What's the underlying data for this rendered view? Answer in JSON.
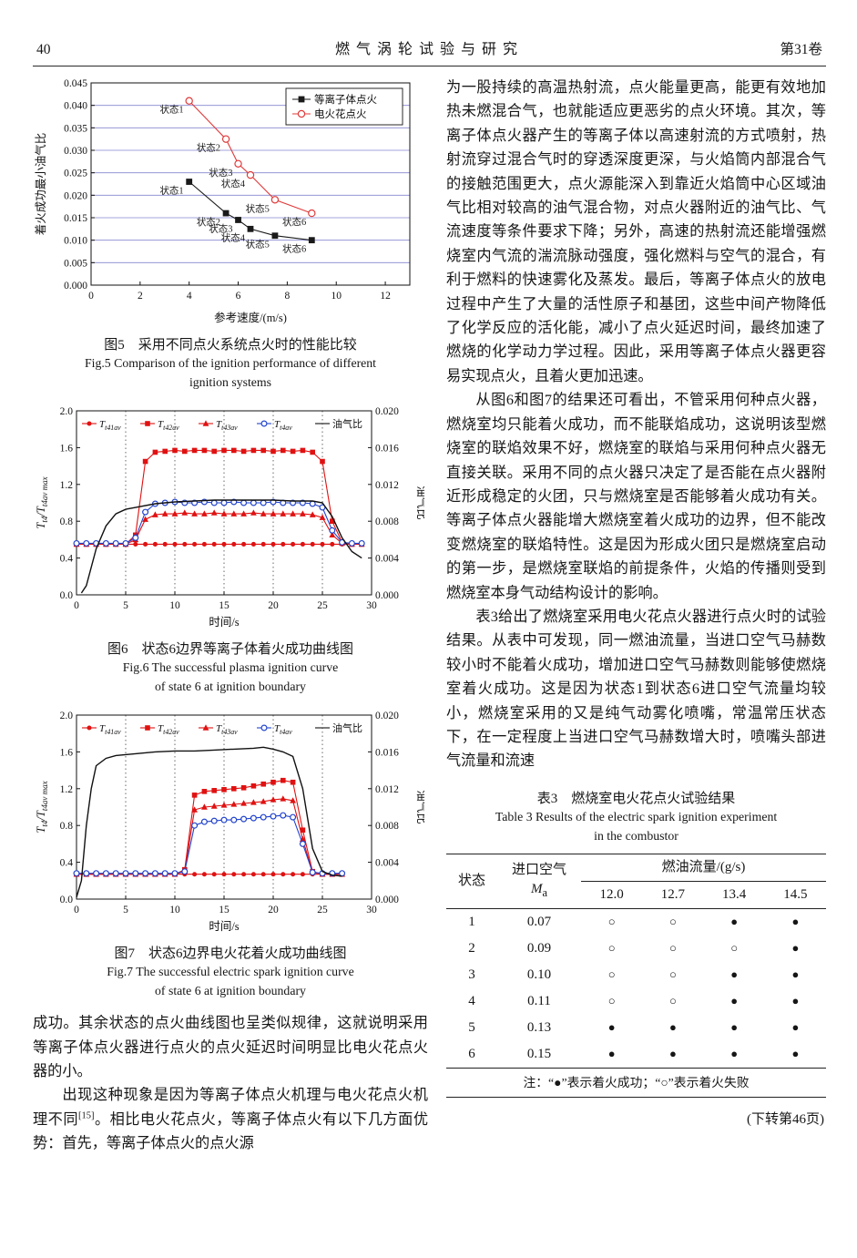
{
  "header": {
    "page_number": "40",
    "journal_title": "燃气涡轮试验与研究",
    "volume": "第31卷"
  },
  "chart_data": [
    {
      "id": "fig5",
      "type": "scatter",
      "xlabel": "参考速度/(m/s)",
      "ylabel": "着火成功最小油气比",
      "x_range": [
        0,
        13
      ],
      "x_ticks": [
        0,
        2,
        4,
        6,
        8,
        10,
        12
      ],
      "yl_range": [
        0,
        0.045
      ],
      "yl_ticks": [
        "0.000",
        "0.005",
        "0.010",
        "0.015",
        "0.020",
        "0.025",
        "0.030",
        "0.035",
        "0.040",
        "0.045"
      ],
      "grid": "h-blue",
      "grid_color": "#8585d0",
      "legend": "box",
      "series": [
        {
          "name": "等离子体点火",
          "color": "#1a1a1a",
          "marker": "square",
          "msize": 3.4,
          "x": [
            4,
            5.5,
            6,
            6.5,
            7.5,
            9
          ],
          "y": [
            0.023,
            0.016,
            0.0145,
            0.0125,
            0.011,
            0.01
          ],
          "point_labels": [
            "状态1",
            "状态2",
            "状态3",
            "状态4",
            "状态5",
            "状态6"
          ]
        },
        {
          "name": "电火花点火",
          "color": "#df3a3a",
          "marker": "circle-open",
          "msize": 3.6,
          "x": [
            4,
            5.5,
            6,
            6.5,
            7.5,
            9
          ],
          "y": [
            0.041,
            0.0325,
            0.027,
            0.0245,
            0.019,
            0.016
          ],
          "point_labels": [
            "状态1",
            "状态2",
            "状态3",
            "状态4",
            "状态5",
            "状态6"
          ]
        }
      ]
    },
    {
      "id": "fig6",
      "type": "line",
      "xlabel": "时间/s",
      "ylabel_left": "T_{t4}/T_{t4av max}",
      "ylabel_right": "油气比",
      "x_range": [
        0,
        30
      ],
      "x_ticks": [
        0,
        5,
        10,
        15,
        20,
        25,
        30
      ],
      "yl_range": [
        0,
        2.0
      ],
      "yl_ticks": [
        "0.0",
        "0.4",
        "0.8",
        "1.2",
        "1.6",
        "2.0"
      ],
      "yr_range": [
        0,
        0.02
      ],
      "yr_ticks": [
        "0.000",
        "0.004",
        "0.008",
        "0.012",
        "0.016",
        "0.020"
      ],
      "grid": "v-dotted",
      "legend": "row",
      "series": [
        {
          "name": "T_{t41av}",
          "color": "#e01111",
          "marker": "dot",
          "msize": 2.8,
          "axis": "l",
          "x": [
            0,
            1,
            2,
            3,
            4,
            5,
            6,
            7,
            8,
            9,
            10,
            11,
            12,
            13,
            14,
            15,
            16,
            17,
            18,
            19,
            20,
            21,
            22,
            23,
            24,
            25,
            26,
            27,
            28,
            29
          ],
          "y": [
            0.55,
            0.55,
            0.55,
            0.55,
            0.55,
            0.55,
            0.55,
            0.55,
            0.55,
            0.55,
            0.55,
            0.55,
            0.55,
            0.55,
            0.55,
            0.55,
            0.55,
            0.55,
            0.55,
            0.55,
            0.55,
            0.55,
            0.55,
            0.55,
            0.55,
            0.55,
            0.55,
            0.55,
            0.55,
            0.55
          ]
        },
        {
          "name": "T_{t42av}",
          "color": "#e01111",
          "marker": "square",
          "msize": 2.8,
          "axis": "l",
          "x": [
            0,
            1,
            2,
            3,
            4,
            5,
            6,
            7,
            8,
            9,
            10,
            11,
            12,
            13,
            14,
            15,
            16,
            17,
            18,
            19,
            20,
            21,
            22,
            23,
            24,
            25,
            26,
            27,
            28,
            29
          ],
          "y": [
            0.55,
            0.55,
            0.55,
            0.55,
            0.55,
            0.55,
            0.65,
            1.45,
            1.55,
            1.56,
            1.57,
            1.56,
            1.57,
            1.57,
            1.56,
            1.57,
            1.57,
            1.56,
            1.57,
            1.57,
            1.56,
            1.57,
            1.56,
            1.57,
            1.55,
            1.45,
            0.8,
            0.57,
            0.55,
            0.55
          ]
        },
        {
          "name": "T_{t43av}",
          "color": "#e01111",
          "marker": "triangle",
          "msize": 2.9,
          "axis": "l",
          "x": [
            0,
            1,
            2,
            3,
            4,
            5,
            6,
            7,
            8,
            9,
            10,
            11,
            12,
            13,
            14,
            15,
            16,
            17,
            18,
            19,
            20,
            21,
            22,
            23,
            24,
            25,
            26,
            27,
            28,
            29
          ],
          "y": [
            0.55,
            0.55,
            0.55,
            0.55,
            0.55,
            0.55,
            0.6,
            0.82,
            0.87,
            0.88,
            0.88,
            0.89,
            0.88,
            0.88,
            0.89,
            0.88,
            0.88,
            0.88,
            0.89,
            0.88,
            0.88,
            0.88,
            0.88,
            0.88,
            0.87,
            0.84,
            0.65,
            0.56,
            0.55,
            0.55
          ]
        },
        {
          "name": "T_{t4av}",
          "color": "#2244cc",
          "marker": "circle-open",
          "msize": 2.9,
          "axis": "l",
          "x": [
            0,
            1,
            2,
            3,
            4,
            5,
            6,
            7,
            8,
            9,
            10,
            11,
            12,
            13,
            14,
            15,
            16,
            17,
            18,
            19,
            20,
            21,
            22,
            23,
            24,
            25,
            26,
            27,
            28,
            29
          ],
          "y": [
            0.56,
            0.56,
            0.56,
            0.56,
            0.56,
            0.56,
            0.62,
            0.9,
            0.99,
            1.0,
            1.01,
            1.0,
            1.0,
            1.01,
            1.0,
            1.0,
            1.01,
            1.0,
            1.0,
            1.0,
            1.01,
            1.0,
            1.0,
            1.0,
            0.99,
            0.95,
            0.7,
            0.57,
            0.56,
            0.56
          ]
        },
        {
          "name": "油气比",
          "color": "#111111",
          "marker": "none",
          "width": 1.4,
          "axis": "r",
          "x": [
            0.5,
            1,
            1.5,
            2,
            3,
            4,
            5,
            6,
            8,
            10,
            12,
            14,
            16,
            18,
            20,
            22,
            24,
            25,
            26,
            27,
            28,
            29
          ],
          "y": [
            0.0002,
            0.001,
            0.003,
            0.005,
            0.0075,
            0.0088,
            0.0093,
            0.0095,
            0.0099,
            0.0101,
            0.0102,
            0.0103,
            0.0103,
            0.0103,
            0.0103,
            0.0102,
            0.0102,
            0.01,
            0.0085,
            0.0062,
            0.0047,
            0.004
          ]
        }
      ]
    },
    {
      "id": "fig7",
      "type": "line",
      "xlabel": "时间/s",
      "ylabel_left": "T_{t4}/T_{t4av max}",
      "ylabel_right": "油气比",
      "x_range": [
        0,
        30
      ],
      "x_ticks": [
        0,
        5,
        10,
        15,
        20,
        25,
        30
      ],
      "yl_range": [
        0,
        2.0
      ],
      "yl_ticks": [
        "0.0",
        "0.4",
        "0.8",
        "1.2",
        "1.6",
        "2.0"
      ],
      "yr_range": [
        0,
        0.02
      ],
      "yr_ticks": [
        "0.000",
        "0.004",
        "0.008",
        "0.012",
        "0.016",
        "0.020"
      ],
      "grid": "v-dotted",
      "legend": "row",
      "series": [
        {
          "name": "T_{t41av}",
          "color": "#e01111",
          "marker": "dot",
          "msize": 2.8,
          "axis": "l",
          "x": [
            0,
            1,
            2,
            3,
            4,
            5,
            6,
            7,
            8,
            9,
            10,
            11,
            12,
            13,
            14,
            15,
            16,
            17,
            18,
            19,
            20,
            21,
            22,
            23,
            24,
            25,
            26,
            27
          ],
          "y": [
            0.27,
            0.27,
            0.27,
            0.27,
            0.27,
            0.27,
            0.27,
            0.27,
            0.27,
            0.27,
            0.27,
            0.27,
            0.27,
            0.27,
            0.27,
            0.27,
            0.27,
            0.27,
            0.27,
            0.27,
            0.27,
            0.27,
            0.27,
            0.27,
            0.27,
            0.27,
            0.27,
            0.27
          ]
        },
        {
          "name": "T_{t42av}",
          "color": "#e01111",
          "marker": "square",
          "msize": 2.8,
          "axis": "l",
          "x": [
            0,
            1,
            2,
            3,
            4,
            5,
            6,
            7,
            8,
            9,
            10,
            11,
            12,
            13,
            14,
            15,
            16,
            17,
            18,
            19,
            20,
            21,
            22,
            23,
            24,
            25,
            26,
            27
          ],
          "y": [
            0.27,
            0.27,
            0.27,
            0.27,
            0.27,
            0.27,
            0.27,
            0.27,
            0.27,
            0.27,
            0.27,
            0.32,
            1.13,
            1.17,
            1.18,
            1.19,
            1.2,
            1.21,
            1.23,
            1.25,
            1.27,
            1.29,
            1.27,
            0.75,
            0.3,
            0.27,
            0.27,
            0.27
          ]
        },
        {
          "name": "T_{t43av}",
          "color": "#e01111",
          "marker": "triangle",
          "msize": 2.9,
          "axis": "l",
          "x": [
            0,
            1,
            2,
            3,
            4,
            5,
            6,
            7,
            8,
            9,
            10,
            11,
            12,
            13,
            14,
            15,
            16,
            17,
            18,
            19,
            20,
            21,
            22,
            23,
            24,
            25,
            26,
            27
          ],
          "y": [
            0.27,
            0.27,
            0.27,
            0.27,
            0.27,
            0.27,
            0.27,
            0.27,
            0.27,
            0.27,
            0.27,
            0.3,
            0.97,
            1.0,
            1.01,
            1.02,
            1.03,
            1.04,
            1.05,
            1.06,
            1.08,
            1.09,
            1.07,
            0.65,
            0.29,
            0.27,
            0.27,
            0.27
          ]
        },
        {
          "name": "T_{t4av}",
          "color": "#2244cc",
          "marker": "circle-open",
          "msize": 2.9,
          "axis": "l",
          "x": [
            0,
            1,
            2,
            3,
            4,
            5,
            6,
            7,
            8,
            9,
            10,
            11,
            12,
            13,
            14,
            15,
            16,
            17,
            18,
            19,
            20,
            21,
            22,
            23,
            24,
            25,
            26,
            27
          ],
          "y": [
            0.28,
            0.28,
            0.28,
            0.28,
            0.28,
            0.28,
            0.28,
            0.28,
            0.28,
            0.28,
            0.28,
            0.3,
            0.8,
            0.84,
            0.85,
            0.86,
            0.86,
            0.87,
            0.88,
            0.89,
            0.9,
            0.91,
            0.89,
            0.6,
            0.29,
            0.28,
            0.28,
            0.28
          ]
        },
        {
          "name": "油气比",
          "color": "#111111",
          "marker": "none",
          "width": 1.4,
          "axis": "r",
          "x": [
            0,
            0.5,
            1,
            1.5,
            2,
            3,
            4,
            6,
            8,
            10,
            12,
            14,
            16,
            18,
            19,
            20,
            21,
            22,
            23,
            24,
            25,
            26,
            27
          ],
          "y": [
            0.0002,
            0.002,
            0.008,
            0.012,
            0.0145,
            0.0153,
            0.0156,
            0.0158,
            0.016,
            0.0161,
            0.0161,
            0.0162,
            0.0163,
            0.0164,
            0.0165,
            0.0163,
            0.016,
            0.0155,
            0.012,
            0.0055,
            0.003,
            0.0026,
            0.0025
          ]
        }
      ]
    }
  ],
  "figures": {
    "fig5": {
      "caption_cn": "图5　采用不同点火系统点火时的性能比较",
      "caption_en1": "Fig.5  Comparison of the ignition performance of different",
      "caption_en2": "ignition systems"
    },
    "fig6": {
      "caption_cn": "图6　状态6边界等离子体着火成功曲线图",
      "caption_en1": "Fig.6  The successful plasma ignition curve",
      "caption_en2": "of state 6 at ignition boundary"
    },
    "fig7": {
      "caption_cn": "图7　状态6边界电火花着火成功曲线图",
      "caption_en1": "Fig.7  The successful electric spark ignition curve",
      "caption_en2": "of state 6 at ignition boundary"
    }
  },
  "left_column": {
    "para1": "成功。其余状态的点火曲线图也呈类似规律，这就说明采用等离子体点火器进行点火的点火延迟时间明显比电火花点火器的小。",
    "para2_a": "出现这种现象是因为等离子体点火机理与电火花点火机理不同",
    "para2_ref": "[15]",
    "para2_b": "。相比电火花点火，等离子体点火有以下几方面优势：首先，等离子体点火的点火源"
  },
  "right_column": {
    "para1": "为一股持续的高温热射流，点火能量更高，能更有效地加热未燃混合气，也就能适应更恶劣的点火环境。其次，等离子体点火器产生的等离子体以高速射流的方式喷射，热射流穿过混合气时的穿透深度更深，与火焰筒内部混合气的接触范围更大，点火源能深入到靠近火焰筒中心区域油气比相对较高的油气混合物，对点火器附近的油气比、气流速度等条件要求下降；另外，高速的热射流还能增强燃烧室内气流的湍流脉动强度，强化燃料与空气的混合，有利于燃料的快速雾化及蒸发。最后，等离子体点火的放电过程中产生了大量的活性原子和基团，这些中间产物降低了化学反应的活化能，减小了点火延迟时间，最终加速了燃烧的化学动力学过程。因此，采用等离子体点火器更容易实现点火，且着火更加迅速。",
    "para2": "从图6和图7的结果还可看出，不管采用何种点火器，燃烧室均只能着火成功，而不能联焰成功，这说明该型燃烧室的联焰效果不好，燃烧室的联焰与采用何种点火器无直接关联。采用不同的点火器只决定了是否能在点火器附近形成稳定的火团，只与燃烧室是否能够着火成功有关。等离子体点火器能增大燃烧室着火成功的边界，但不能改变燃烧室的联焰特性。这是因为形成火团只是燃烧室启动的第一步，是燃烧室联焰的前提条件，火焰的传播则受到燃烧室本身气动结构设计的影响。",
    "para3": "表3给出了燃烧室采用电火花点火器进行点火时的试验结果。从表中可发现，同一燃油流量，当进口空气马赫数较小时不能着火成功，增加进口空气马赫数则能够使燃烧室着火成功。这是因为状态1到状态6进口空气流量均较小，燃烧室采用的又是纯气动雾化喷嘴，常温常压状态下，在一定程度上当进口空气马赫数增大时，喷嘴头部进气流量和流速"
  },
  "table3": {
    "caption_cn": "表3　燃烧室电火花点火试验结果",
    "caption_en1": "Table 3  Results of the electric spark ignition experiment",
    "caption_en2": "in the combustor",
    "header": {
      "state": "状态",
      "inlet_air": "进口空气",
      "ma_main": "M",
      "ma_sub": "a",
      "fuel_flow": "燃油流量/(g/s)"
    },
    "flow_labels": [
      "12.0",
      "12.7",
      "13.4",
      "14.5"
    ],
    "rows": [
      {
        "state": "1",
        "ma": "0.07",
        "results": [
          "○",
          "○",
          "●",
          "●"
        ]
      },
      {
        "state": "2",
        "ma": "0.09",
        "results": [
          "○",
          "○",
          "○",
          "●"
        ]
      },
      {
        "state": "3",
        "ma": "0.10",
        "results": [
          "○",
          "○",
          "●",
          "●"
        ]
      },
      {
        "state": "4",
        "ma": "0.11",
        "results": [
          "○",
          "○",
          "●",
          "●"
        ]
      },
      {
        "state": "5",
        "ma": "0.13",
        "results": [
          "●",
          "●",
          "●",
          "●"
        ]
      },
      {
        "state": "6",
        "ma": "0.15",
        "results": [
          "●",
          "●",
          "●",
          "●"
        ]
      }
    ],
    "note": "注：“●”表示着火成功；“○”表示着火失败"
  },
  "footer": {
    "continued": "(下转第46页)"
  }
}
